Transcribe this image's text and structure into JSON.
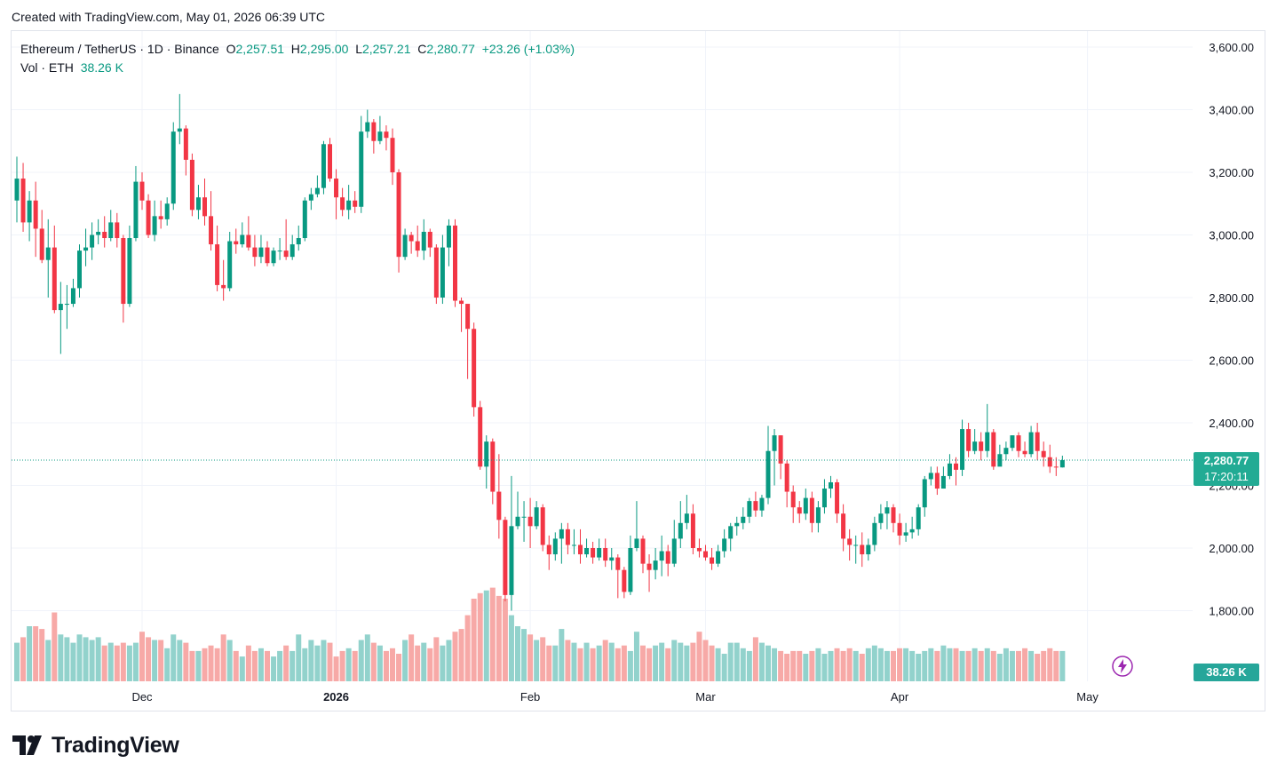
{
  "header": {
    "created_text": "Created with TradingView.com, May 01, 2026 06:39 UTC"
  },
  "legend": {
    "symbol": "Ethereum / TetherUS · 1D · Binance",
    "open_label": "O",
    "open": "2,257.51",
    "high_label": "H",
    "high": "2,295.00",
    "low_label": "L",
    "low": "2,257.21",
    "close_label": "C",
    "close": "2,280.77",
    "change": "+23.26 (+1.03%)",
    "volume_label": "Vol · ETH",
    "volume": "38.26 K"
  },
  "badges": {
    "last_price": "2,280.77",
    "countdown": "17:20:11",
    "volume": "38.26 K"
  },
  "logo": {
    "text": "TradingView"
  },
  "colors": {
    "up": "#089981",
    "down": "#f23645",
    "vol_up": "#92d2cc",
    "vol_down": "#f7a9a7",
    "grid": "#f0f3fa",
    "badge": "#22ab94"
  },
  "chart_data": {
    "type": "candlestick",
    "symbol": "ETHUSDT",
    "interval": "1D",
    "y_ticks": [
      1800,
      2000,
      2200,
      2400,
      2600,
      2800,
      3000,
      3200,
      3400,
      3600
    ],
    "y_tick_labels": [
      "1,800.00",
      "2,000.00",
      "2,200.00",
      "2,400.00",
      "2,600.00",
      "2,800.00",
      "3,000.00",
      "3,200.00",
      "3,400.00",
      "3,600.00"
    ],
    "x_labels": [
      {
        "label": "Dec",
        "index": 20
      },
      {
        "label": "2026",
        "index": 51
      },
      {
        "label": "Feb",
        "index": 82
      },
      {
        "label": "Mar",
        "index": 110
      },
      {
        "label": "Apr",
        "index": 141
      },
      {
        "label": "May",
        "index": 171
      }
    ],
    "last_price": 2280.77,
    "candles": [
      [
        3110,
        3180,
        3250,
        3040
      ],
      [
        3180,
        3040,
        3230,
        3010
      ],
      [
        3040,
        3110,
        3140,
        2980
      ],
      [
        3110,
        3020,
        3170,
        2930
      ],
      [
        3020,
        2920,
        3080,
        2910
      ],
      [
        2920,
        2960,
        3050,
        2800
      ],
      [
        2960,
        2760,
        3030,
        2750
      ],
      [
        2760,
        2780,
        2850,
        2620
      ],
      [
        2780,
        2780,
        2840,
        2700
      ],
      [
        2780,
        2830,
        2860,
        2770
      ],
      [
        2830,
        2950,
        2970,
        2800
      ],
      [
        2950,
        2960,
        3020,
        2900
      ],
      [
        2960,
        3000,
        3040,
        2920
      ],
      [
        3000,
        3010,
        3050,
        2970
      ],
      [
        3010,
        2990,
        3060,
        2960
      ],
      [
        2990,
        3040,
        3080,
        2980
      ],
      [
        3040,
        2990,
        3070,
        2960
      ],
      [
        2990,
        2780,
        3000,
        2720
      ],
      [
        2780,
        2990,
        3030,
        2770
      ],
      [
        2990,
        3170,
        3220,
        2980
      ],
      [
        3170,
        3110,
        3200,
        3080
      ],
      [
        3110,
        3000,
        3130,
        2990
      ],
      [
        3000,
        3060,
        3110,
        2980
      ],
      [
        3060,
        3050,
        3110,
        3020
      ],
      [
        3050,
        3100,
        3120,
        3030
      ],
      [
        3100,
        3330,
        3360,
        3080
      ],
      [
        3330,
        3340,
        3450,
        3290
      ],
      [
        3340,
        3240,
        3350,
        3190
      ],
      [
        3240,
        3080,
        3260,
        3060
      ],
      [
        3080,
        3120,
        3160,
        3050
      ],
      [
        3120,
        3060,
        3180,
        3030
      ],
      [
        3060,
        2970,
        3140,
        2950
      ],
      [
        2970,
        2840,
        3030,
        2820
      ],
      [
        2840,
        2830,
        2920,
        2790
      ],
      [
        2830,
        2980,
        3010,
        2820
      ],
      [
        2980,
        2970,
        3020,
        2940
      ],
      [
        2970,
        3000,
        3040,
        2960
      ],
      [
        3000,
        2960,
        3060,
        2950
      ],
      [
        2960,
        2930,
        3000,
        2900
      ],
      [
        2930,
        2960,
        3000,
        2910
      ],
      [
        2960,
        2910,
        2980,
        2900
      ],
      [
        2910,
        2950,
        2960,
        2900
      ],
      [
        2950,
        2950,
        2990,
        2920
      ],
      [
        2950,
        2930,
        3050,
        2920
      ],
      [
        2930,
        2970,
        3000,
        2920
      ],
      [
        2970,
        2990,
        3030,
        2950
      ],
      [
        2990,
        3110,
        3120,
        2980
      ],
      [
        3110,
        3130,
        3150,
        3080
      ],
      [
        3130,
        3150,
        3190,
        3120
      ],
      [
        3150,
        3290,
        3300,
        3130
      ],
      [
        3290,
        3180,
        3310,
        3170
      ],
      [
        3180,
        3120,
        3210,
        3050
      ],
      [
        3120,
        3080,
        3150,
        3060
      ],
      [
        3080,
        3110,
        3160,
        3050
      ],
      [
        3110,
        3090,
        3140,
        3070
      ],
      [
        3090,
        3330,
        3380,
        3070
      ],
      [
        3330,
        3360,
        3400,
        3310
      ],
      [
        3360,
        3300,
        3370,
        3260
      ],
      [
        3300,
        3330,
        3380,
        3290
      ],
      [
        3330,
        3310,
        3350,
        3270
      ],
      [
        3310,
        3200,
        3340,
        3160
      ],
      [
        3200,
        2930,
        3210,
        2880
      ],
      [
        2930,
        3000,
        3020,
        2920
      ],
      [
        3000,
        2980,
        3010,
        2940
      ],
      [
        2980,
        2950,
        3030,
        2930
      ],
      [
        2950,
        3010,
        3050,
        2920
      ],
      [
        3010,
        2960,
        3020,
        2930
      ],
      [
        2960,
        2800,
        2970,
        2780
      ],
      [
        2800,
        2960,
        3000,
        2780
      ],
      [
        2960,
        3030,
        3050,
        2900
      ],
      [
        3030,
        2790,
        3050,
        2770
      ],
      [
        2790,
        2780,
        2800,
        2690
      ],
      [
        2780,
        2700,
        2700,
        2540
      ],
      [
        2700,
        2450,
        2720,
        2420
      ],
      [
        2450,
        2260,
        2470,
        2250
      ],
      [
        2260,
        2340,
        2360,
        2190
      ],
      [
        2340,
        2180,
        2350,
        2140
      ],
      [
        2180,
        2090,
        2300,
        2030
      ],
      [
        2090,
        1850,
        2100,
        1830
      ],
      [
        1850,
        2070,
        2230,
        1800
      ],
      [
        2070,
        2100,
        2180,
        2060
      ],
      [
        2100,
        2100,
        2150,
        2020
      ],
      [
        2100,
        2070,
        2160,
        2000
      ],
      [
        2070,
        2130,
        2150,
        2060
      ],
      [
        2130,
        2010,
        2140,
        1990
      ],
      [
        2010,
        1980,
        2040,
        1930
      ],
      [
        1980,
        2030,
        2050,
        1960
      ],
      [
        2030,
        2060,
        2080,
        1950
      ],
      [
        2060,
        2010,
        2080,
        1980
      ],
      [
        2010,
        2010,
        2060,
        1980
      ],
      [
        2010,
        1980,
        2060,
        1950
      ],
      [
        1980,
        2000,
        2030,
        1970
      ],
      [
        2000,
        1970,
        2020,
        1950
      ],
      [
        1970,
        2000,
        2030,
        1960
      ],
      [
        2000,
        1960,
        2030,
        1940
      ],
      [
        1960,
        1970,
        2000,
        1930
      ],
      [
        1970,
        1930,
        1980,
        1840
      ],
      [
        1930,
        1860,
        1940,
        1840
      ],
      [
        1860,
        2000,
        2040,
        1850
      ],
      [
        2000,
        2030,
        2150,
        1990
      ],
      [
        2030,
        1950,
        2040,
        1920
      ],
      [
        1950,
        1930,
        1980,
        1860
      ],
      [
        1930,
        1960,
        2000,
        1900
      ],
      [
        1960,
        1990,
        2040,
        1910
      ],
      [
        1990,
        1950,
        2010,
        1910
      ],
      [
        1950,
        2030,
        2090,
        1940
      ],
      [
        2030,
        2080,
        2150,
        2000
      ],
      [
        2080,
        2110,
        2170,
        2060
      ],
      [
        2110,
        2000,
        2140,
        1980
      ],
      [
        2000,
        1990,
        2030,
        1970
      ],
      [
        1990,
        1970,
        2010,
        1960
      ],
      [
        1970,
        1950,
        2000,
        1930
      ],
      [
        1950,
        1990,
        2010,
        1940
      ],
      [
        1990,
        2030,
        2060,
        1970
      ],
      [
        2030,
        2070,
        2080,
        1990
      ],
      [
        2070,
        2080,
        2100,
        2040
      ],
      [
        2080,
        2100,
        2130,
        2060
      ],
      [
        2100,
        2150,
        2160,
        2080
      ],
      [
        2150,
        2120,
        2180,
        2100
      ],
      [
        2120,
        2160,
        2170,
        2100
      ],
      [
        2160,
        2310,
        2390,
        2140
      ],
      [
        2310,
        2360,
        2380,
        2200
      ],
      [
        2360,
        2270,
        2360,
        2220
      ],
      [
        2270,
        2180,
        2280,
        2130
      ],
      [
        2180,
        2130,
        2200,
        2080
      ],
      [
        2130,
        2110,
        2150,
        2080
      ],
      [
        2110,
        2160,
        2190,
        2090
      ],
      [
        2160,
        2080,
        2180,
        2050
      ],
      [
        2080,
        2130,
        2150,
        2050
      ],
      [
        2130,
        2190,
        2220,
        2110
      ],
      [
        2190,
        2210,
        2230,
        2160
      ],
      [
        2210,
        2110,
        2220,
        2080
      ],
      [
        2110,
        2030,
        2140,
        1990
      ],
      [
        2030,
        2010,
        2060,
        1960
      ],
      [
        2010,
        2010,
        2040,
        1950
      ],
      [
        2010,
        1980,
        2050,
        1940
      ],
      [
        1980,
        2010,
        2030,
        1960
      ],
      [
        2010,
        2080,
        2100,
        1990
      ],
      [
        2080,
        2110,
        2140,
        2060
      ],
      [
        2110,
        2130,
        2150,
        2060
      ],
      [
        2130,
        2080,
        2140,
        2050
      ],
      [
        2080,
        2040,
        2110,
        2010
      ],
      [
        2040,
        2050,
        2080,
        2020
      ],
      [
        2050,
        2060,
        2100,
        2030
      ],
      [
        2060,
        2130,
        2140,
        2040
      ],
      [
        2130,
        2220,
        2230,
        2100
      ],
      [
        2220,
        2240,
        2260,
        2200
      ],
      [
        2240,
        2190,
        2260,
        2170
      ],
      [
        2190,
        2230,
        2260,
        2190
      ],
      [
        2230,
        2270,
        2300,
        2220
      ],
      [
        2270,
        2250,
        2290,
        2200
      ],
      [
        2250,
        2380,
        2410,
        2230
      ],
      [
        2380,
        2310,
        2400,
        2290
      ],
      [
        2310,
        2340,
        2380,
        2300
      ],
      [
        2340,
        2310,
        2370,
        2280
      ],
      [
        2310,
        2370,
        2460,
        2290
      ],
      [
        2370,
        2260,
        2380,
        2250
      ],
      [
        2260,
        2300,
        2330,
        2270
      ],
      [
        2300,
        2320,
        2340,
        2280
      ],
      [
        2320,
        2360,
        2360,
        2310
      ],
      [
        2360,
        2310,
        2370,
        2290
      ],
      [
        2310,
        2300,
        2340,
        2290
      ],
      [
        2300,
        2370,
        2390,
        2290
      ],
      [
        2370,
        2310,
        2400,
        2280
      ],
      [
        2310,
        2290,
        2340,
        2260
      ],
      [
        2290,
        2260,
        2330,
        2240
      ],
      [
        2260,
        2258,
        2290,
        2230
      ],
      [
        2257.51,
        2280.77,
        2295,
        2257.21
      ]
    ],
    "volumes": [
      70,
      80,
      100,
      100,
      95,
      75,
      125,
      85,
      80,
      70,
      85,
      80,
      75,
      80,
      65,
      70,
      65,
      70,
      65,
      70,
      90,
      80,
      75,
      75,
      60,
      85,
      75,
      70,
      55,
      55,
      60,
      65,
      60,
      85,
      75,
      55,
      45,
      65,
      55,
      60,
      55,
      45,
      55,
      65,
      55,
      85,
      60,
      75,
      65,
      75,
      70,
      45,
      55,
      60,
      55,
      75,
      85,
      70,
      65,
      55,
      60,
      50,
      75,
      85,
      65,
      70,
      60,
      80,
      65,
      75,
      90,
      95,
      120,
      150,
      160,
      165,
      170,
      155,
      150,
      120,
      100,
      95,
      85,
      75,
      80,
      65,
      65,
      95,
      75,
      70,
      60,
      70,
      60,
      65,
      75,
      70,
      60,
      65,
      55,
      90,
      65,
      60,
      65,
      70,
      60,
      75,
      70,
      65,
      70,
      90,
      75,
      65,
      60,
      50,
      70,
      70,
      60,
      55,
      80,
      70,
      65,
      60,
      55,
      50,
      55,
      55,
      50,
      55,
      60,
      50,
      55,
      60,
      55,
      60,
      55,
      50,
      60,
      65,
      60,
      55,
      55,
      60,
      60,
      55,
      50,
      55,
      60,
      55,
      65,
      60,
      60,
      55,
      55,
      60,
      55,
      60,
      55,
      50,
      60,
      55,
      55,
      60,
      55,
      50,
      55,
      60,
      55,
      55,
      60,
      65,
      55,
      45
    ]
  }
}
